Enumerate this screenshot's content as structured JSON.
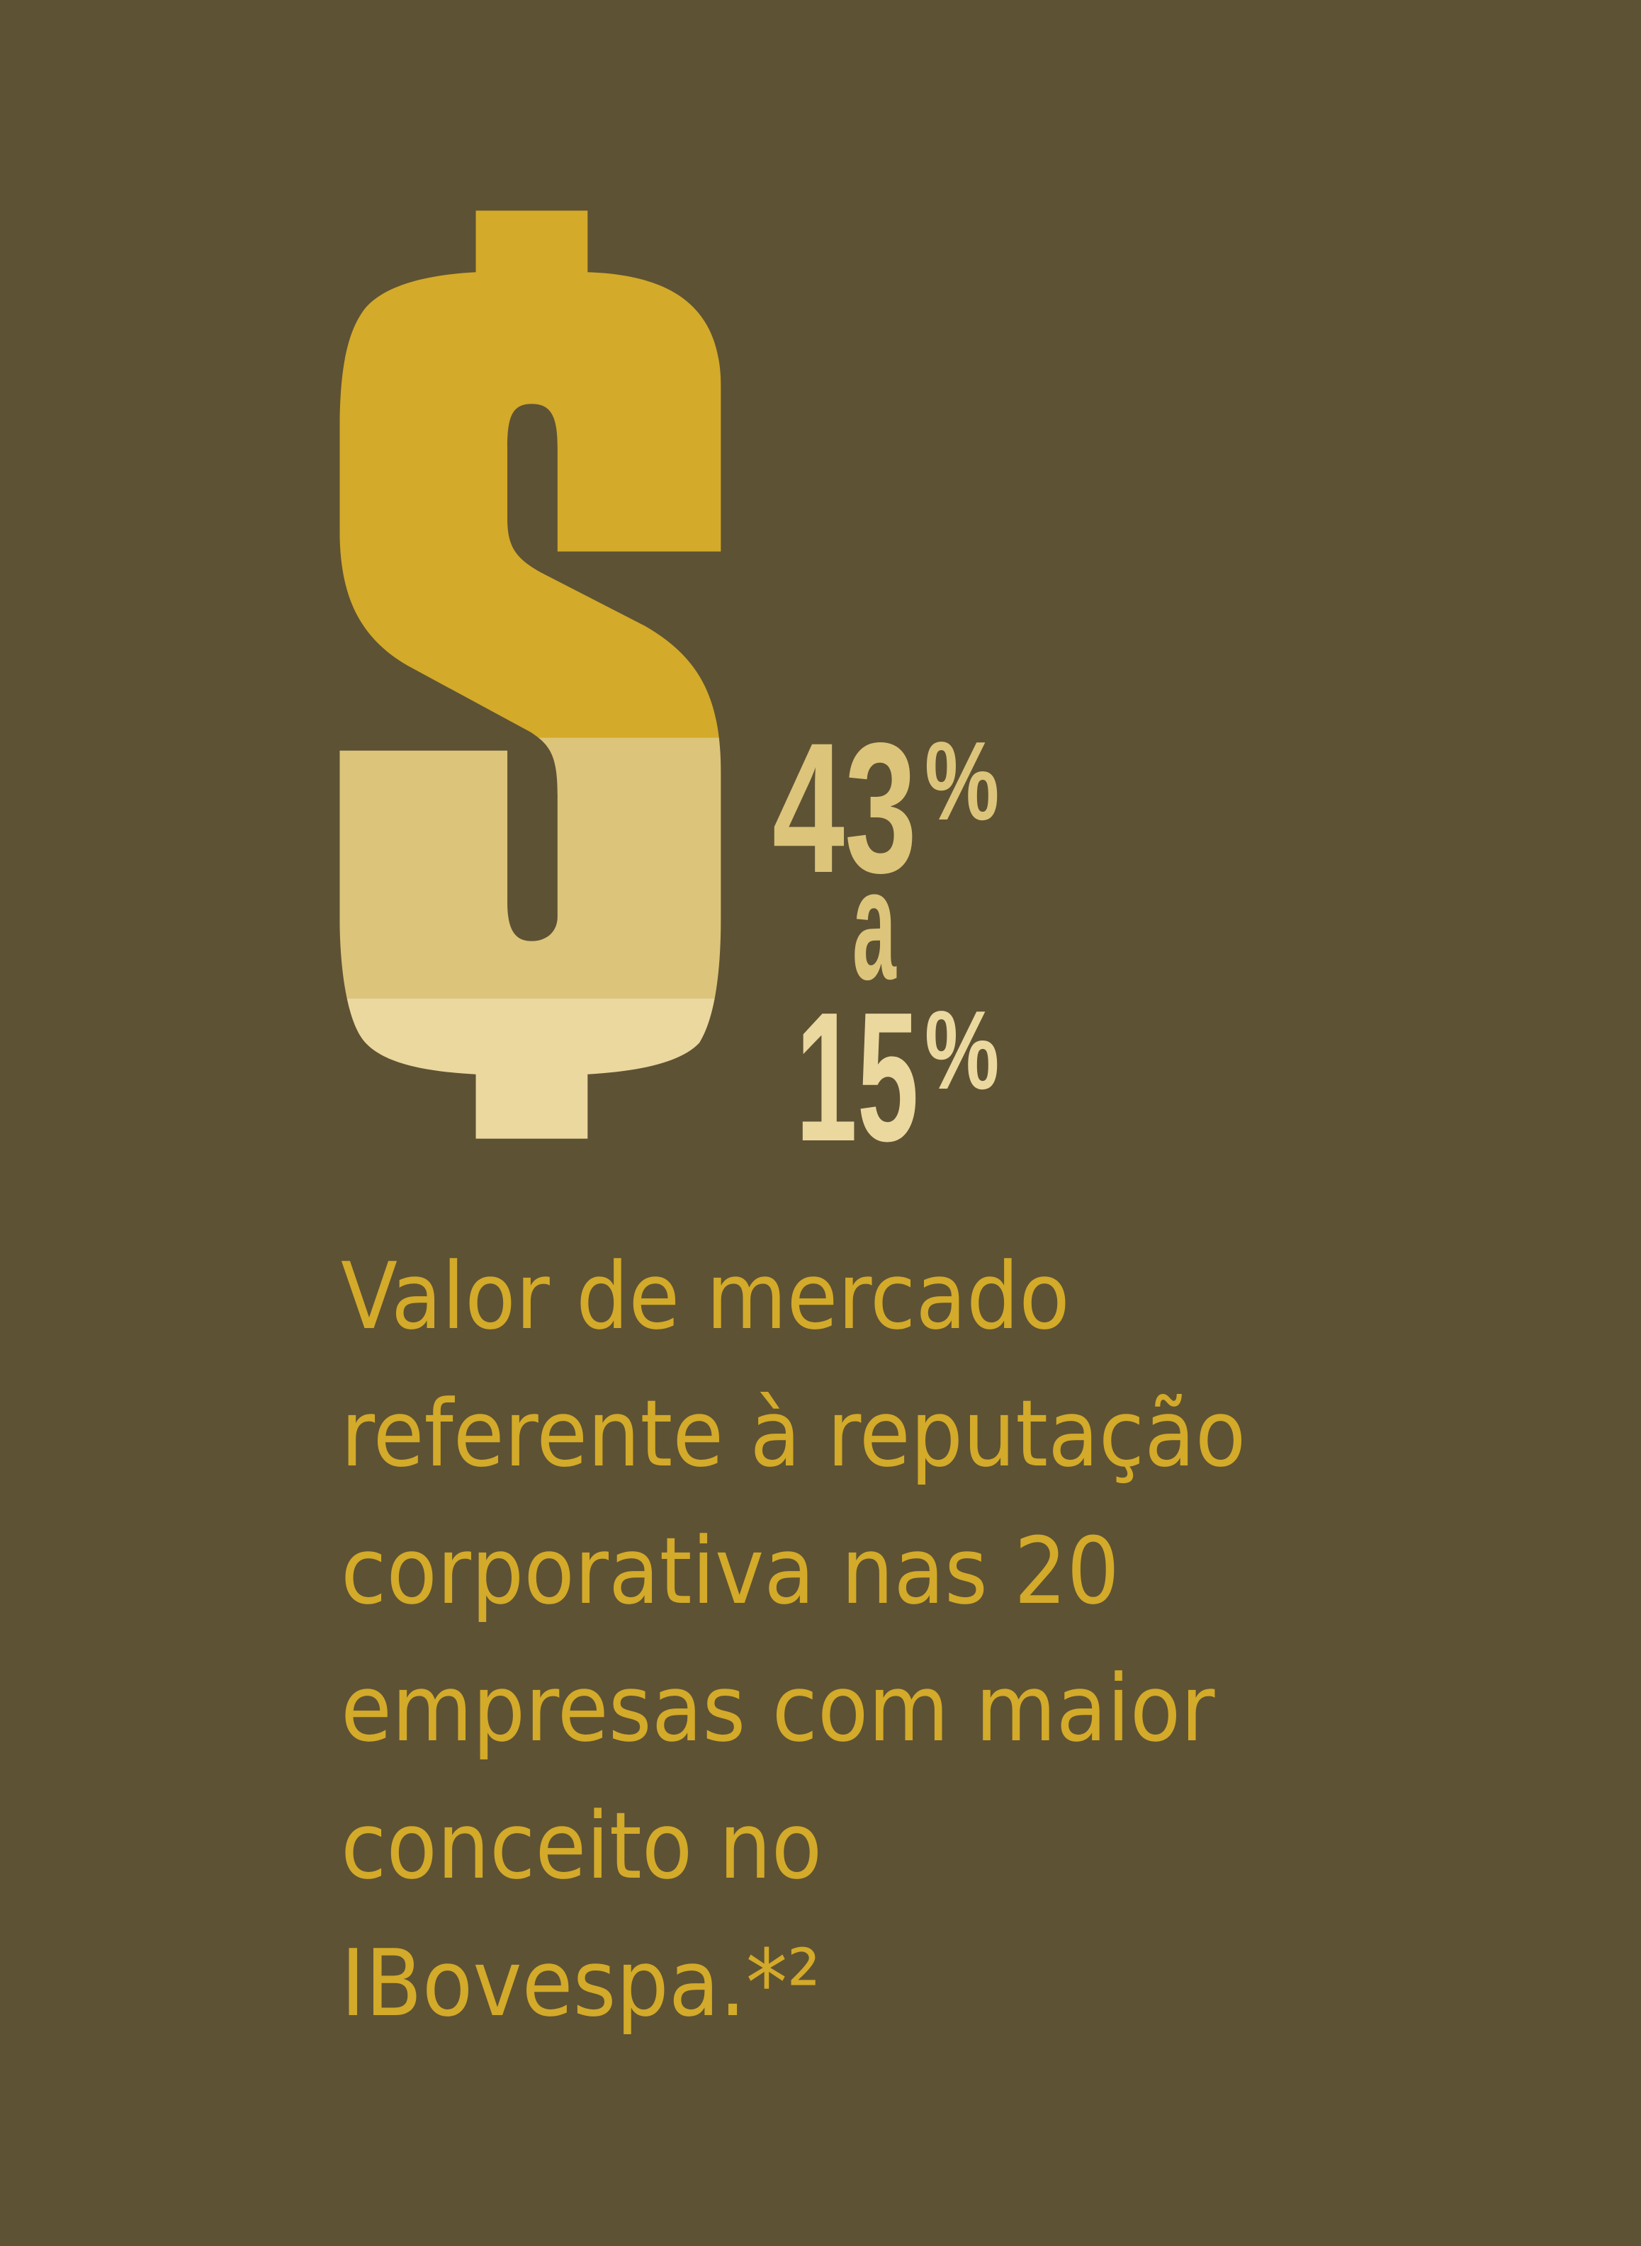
{
  "colors": {
    "background": "#5e5234",
    "dollar_top": "#d3aa29",
    "dollar_middle": "#dcc47a",
    "dollar_bottom": "#ebd89f",
    "body_text": "#d3aa29"
  },
  "graphic": {
    "icon": "dollar-sign-icon"
  },
  "stat": {
    "high": "43",
    "high_unit": "%",
    "connector": "a",
    "low": "15",
    "low_unit": "%"
  },
  "description": {
    "lines": [
      "Valor de mercado",
      "referente à reputação",
      "corporativa nas 20",
      "empresas com maior",
      "conceito no",
      "IBovespa.*²"
    ]
  }
}
